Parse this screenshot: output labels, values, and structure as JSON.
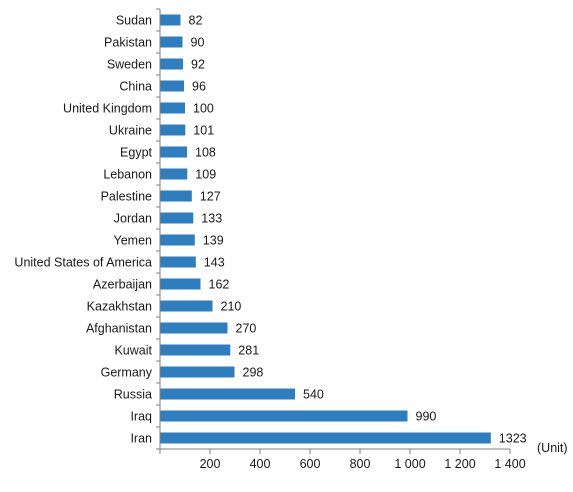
{
  "chart_data": {
    "type": "bar",
    "orientation": "horizontal",
    "categories": [
      "Sudan",
      "Pakistan",
      "Sweden",
      "China",
      "United Kingdom",
      "Ukraine",
      "Egypt",
      "Lebanon",
      "Palestine",
      "Jordan",
      "Yemen",
      "United States of America",
      "Azerbaijan",
      "Kazakhstan",
      "Afghanistan",
      "Kuwait",
      "Germany",
      "Russia",
      "Iraq",
      "Iran"
    ],
    "values": [
      82,
      90,
      92,
      96,
      100,
      101,
      108,
      109,
      127,
      133,
      139,
      143,
      162,
      210,
      270,
      281,
      298,
      540,
      990,
      1323
    ],
    "data_labels": [
      "82",
      "90",
      "92",
      "96",
      "100",
      "101",
      "108",
      "109",
      "127",
      "133",
      "139",
      "143",
      "162",
      "210",
      "270",
      "281",
      "298",
      "540",
      "990",
      "1323"
    ],
    "xlim": [
      0,
      1400
    ],
    "x_ticks": [
      0,
      200,
      400,
      600,
      800,
      1000,
      1200,
      1400
    ],
    "x_tick_labels": [
      "",
      "200",
      "400",
      "600",
      "800",
      "1 000",
      "1 200",
      "1 400"
    ],
    "unit_label": "(Unit)",
    "title": "",
    "xlabel": "",
    "ylabel": "",
    "grid": false,
    "legend": "none",
    "bar_color": "#2e7ebf"
  }
}
